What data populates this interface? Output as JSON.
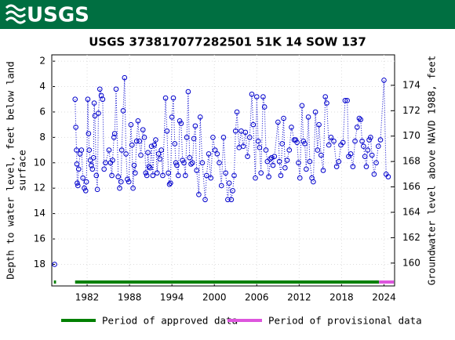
{
  "header": {
    "logo": "USGS"
  },
  "chart_data": {
    "type": "line",
    "title": "USGS 373817077282501 51K 14 SOW 137",
    "ylabel": [
      "Depth to water level, feet below land",
      "surface"
    ],
    "y2label": "Groundwater level above NAVD 1988, feet",
    "xlim": [
      1977.0,
      2025.5
    ],
    "xticks": [
      1982,
      1988,
      1994,
      2000,
      2006,
      2012,
      2018,
      2024
    ],
    "ylim": [
      19.7,
      1.5
    ],
    "yticks": [
      2,
      4,
      6,
      8,
      10,
      12,
      14,
      16,
      18
    ],
    "y2lim": [
      158.2,
      176.4
    ],
    "y2ticks": [
      160,
      162,
      164,
      166,
      168,
      170,
      172,
      174
    ],
    "grid": true,
    "series": [
      {
        "color": "#0000cc",
        "x": [
          1977.4,
          null,
          1980.3,
          1980.4,
          1980.5,
          1980.55,
          1980.6,
          1980.7,
          1980.8,
          1981.0,
          1981.2,
          1981.4,
          1981.6,
          1981.8,
          1981.9,
          1982.1,
          1982.2,
          1982.3,
          1982.45,
          1982.6,
          1982.75,
          1982.9,
          1983.0,
          1983.1,
          1983.3,
          1983.45,
          1983.6,
          1983.8,
          1984.0,
          1984.2,
          1984.4,
          1984.6,
          1985.1,
          1985.3,
          1985.5,
          1985.6,
          1985.8,
          1985.9,
          1986.1,
          1986.4,
          1986.6,
          1986.8,
          1986.9,
          1987.1,
          1987.3,
          1987.5,
          1987.7,
          1987.9,
          1988.2,
          1988.35,
          1988.5,
          1988.65,
          1988.8,
          1989.0,
          1989.2,
          1989.4,
          1989.6,
          1989.9,
          1990.1,
          1990.3,
          1990.45,
          1990.6,
          1990.75,
          1990.9,
          1991.1,
          1991.3,
          1991.5,
          1991.7,
          1991.9,
          1992.1,
          1992.3,
          1992.5,
          1992.7,
          1993.1,
          1993.3,
          1993.5,
          1993.65,
          1993.8,
          1994.0,
          1994.2,
          1994.4,
          1994.55,
          1994.7,
          1994.9,
          1995.1,
          1995.3,
          1995.5,
          1995.7,
          1995.9,
          1996.1,
          1996.3,
          1996.5,
          1996.7,
          1996.9,
          1997.1,
          1997.3,
          1997.5,
          1997.8,
          1998.0,
          1998.3,
          1998.7,
          1998.9,
          1999.2,
          1999.5,
          1999.8,
          2000.1,
          2000.4,
          2000.7,
          2001.0,
          2001.3,
          2001.6,
          2001.9,
          2002.1,
          2002.4,
          2002.6,
          2002.8,
          2003.0,
          2003.2,
          2003.5,
          2003.8,
          2004.1,
          2004.4,
          2004.7,
          2005.0,
          2005.3,
          2005.5,
          2005.8,
          2006.0,
          2006.2,
          2006.4,
          2006.6,
          2006.9,
          2007.1,
          2007.3,
          2007.5,
          2007.7,
          2007.9,
          2008.1,
          2008.3,
          2008.5,
          2009.0,
          2009.2,
          2009.4,
          2009.6,
          2009.8,
          2010.0,
          2010.3,
          2010.6,
          2010.9,
          2011.3,
          2011.5,
          2011.7,
          2011.9,
          2012.1,
          2012.4,
          2012.6,
          2012.8,
          2013.0,
          2013.3,
          2013.5,
          2013.8,
          2014.0,
          2014.3,
          2014.6,
          2014.8,
          2015.1,
          2015.4,
          2015.7,
          2015.9,
          2016.2,
          2016.5,
          2016.9,
          2017.3,
          2017.6,
          2017.9,
          2018.2,
          2018.5,
          2018.8,
          2019.0,
          2019.3,
          2019.6,
          2019.9,
          2020.2,
          2020.5,
          2020.7,
          2020.9,
          2021.1,
          2021.3,
          2021.5,
          2021.7,
          2021.9,
          2022.1,
          2022.3,
          2022.6,
          2022.9,
          2023.2,
          2023.5,
          2024.0,
          2024.3,
          2024.6
        ],
        "values": [
          18.0,
          null,
          5.0,
          7.2,
          9.0,
          10.1,
          11.6,
          11.8,
          10.5,
          9.3,
          9.0,
          11.2,
          12.0,
          12.2,
          11.5,
          5.0,
          7.7,
          9.0,
          9.8,
          10.2,
          10.5,
          9.6,
          5.3,
          6.3,
          11.0,
          12.1,
          6.1,
          4.2,
          4.7,
          5.0,
          10.5,
          10.0,
          9.0,
          10.0,
          11.0,
          9.8,
          8.0,
          7.7,
          4.2,
          11.1,
          12.0,
          11.5,
          9.0,
          5.9,
          3.3,
          9.3,
          11.3,
          11.5,
          7.0,
          8.6,
          12.0,
          10.2,
          10.8,
          8.3,
          6.7,
          8.3,
          9.4,
          7.4,
          8.0,
          10.8,
          11.0,
          9.2,
          10.3,
          10.4,
          8.7,
          11.0,
          8.6,
          8.2,
          10.8,
          9.3,
          9.7,
          9.0,
          11.0,
          4.9,
          7.5,
          10.8,
          11.7,
          11.6,
          6.4,
          4.9,
          8.5,
          10.0,
          10.2,
          11.0,
          6.7,
          6.9,
          9.8,
          10.0,
          11.0,
          8.0,
          4.4,
          9.6,
          10.1,
          10.0,
          8.1,
          7.1,
          10.6,
          12.5,
          6.4,
          10.0,
          12.9,
          11.0,
          9.3,
          11.2,
          8.0,
          9.0,
          9.3,
          10.0,
          11.8,
          8.0,
          10.8,
          12.9,
          11.6,
          12.9,
          12.2,
          11.0,
          7.5,
          6.0,
          8.8,
          7.5,
          8.7,
          7.6,
          9.5,
          8.0,
          4.6,
          7.0,
          11.2,
          4.8,
          8.3,
          8.8,
          10.8,
          4.8,
          5.6,
          9.0,
          9.9,
          11.1,
          9.7,
          9.6,
          10.2,
          9.5,
          6.8,
          9.9,
          11.0,
          8.5,
          6.5,
          10.4,
          9.8,
          9.0,
          7.2,
          8.2,
          8.2,
          8.4,
          10.0,
          11.2,
          5.5,
          8.3,
          8.5,
          10.5,
          6.4,
          9.9,
          11.2,
          11.5,
          6.0,
          9.0,
          7.0,
          9.4,
          10.6,
          4.8,
          5.3,
          8.6,
          8.0,
          8.3,
          10.3,
          9.9,
          8.6,
          8.4,
          5.1,
          5.1,
          9.5,
          9.3,
          10.3,
          8.3,
          7.2,
          6.5,
          6.6,
          8.3,
          8.7,
          9.5,
          10.3,
          9.0,
          8.2,
          8.0,
          9.4,
          10.9,
          10.0,
          8.7,
          8.2,
          3.5,
          10.9,
          11.1
        ]
      }
    ],
    "periods": [
      {
        "name": "Period of approved data",
        "color": "#008000",
        "ranges": [
          [
            1977.3,
            1977.6
          ],
          [
            1980.3,
            2023.3
          ]
        ]
      },
      {
        "name": "Period of provisional data",
        "color": "#dd55dd",
        "ranges": [
          [
            2023.3,
            2025.4
          ]
        ]
      }
    ]
  }
}
